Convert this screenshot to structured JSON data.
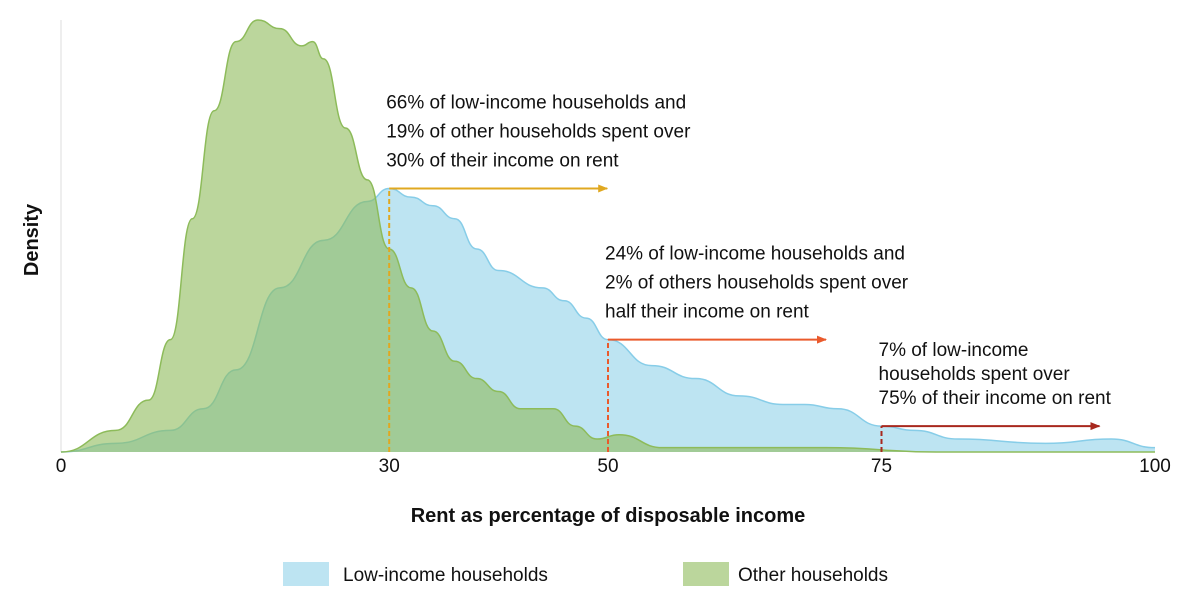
{
  "chart_data": {
    "type": "area",
    "x_label": "Rent as percentage of disposable income",
    "y_label": "Density",
    "xlim": [
      0,
      100
    ],
    "xticks": [
      0,
      30,
      50,
      75,
      100
    ],
    "ylim": [
      0,
      100
    ],
    "series": [
      {
        "name": "Low-income households",
        "color": "#87cde8",
        "x": [
          0,
          5,
          10,
          13,
          16,
          20,
          24,
          28,
          30,
          32,
          34,
          36,
          38,
          40,
          44,
          46,
          48,
          50,
          54,
          58,
          62,
          66,
          68,
          71,
          75,
          78,
          82,
          90,
          96,
          100
        ],
        "values": [
          0,
          2,
          5,
          10,
          19,
          38,
          49,
          58,
          61,
          59,
          57,
          54,
          47,
          42,
          38,
          35,
          31,
          26,
          20,
          17,
          13,
          11,
          11,
          10,
          6,
          5,
          3,
          2,
          3,
          1
        ]
      },
      {
        "name": "Other households",
        "color": "#8dbb5a",
        "x": [
          0,
          5,
          8,
          10,
          12,
          14,
          16,
          18,
          20,
          22,
          23,
          24,
          26,
          28,
          30,
          32,
          34,
          36,
          38,
          40,
          42,
          44,
          45,
          47,
          49,
          51,
          55,
          60,
          70,
          80,
          100
        ],
        "values": [
          0,
          5,
          12,
          26,
          54,
          79,
          95,
          100,
          98,
          94,
          95,
          91,
          75,
          63,
          47,
          38,
          28,
          21,
          17,
          14,
          10,
          10,
          10,
          6,
          3,
          4,
          1,
          1,
          1,
          0,
          0
        ]
      }
    ],
    "annotations": [
      {
        "x": 30,
        "color": "#e0a820",
        "lines": [
          "66% of low-income households and",
          "19% of other households spent over",
          "30% of their income on rent"
        ]
      },
      {
        "x": 50,
        "color": "#ea5a2c",
        "lines": [
          "24% of low-income households and",
          "2% of others households spent over",
          "half their income on rent"
        ]
      },
      {
        "x": 75,
        "color": "#a8281e",
        "lines": [
          "7% of low-income",
          "households spent over",
          "75% of their income on rent"
        ]
      }
    ]
  }
}
